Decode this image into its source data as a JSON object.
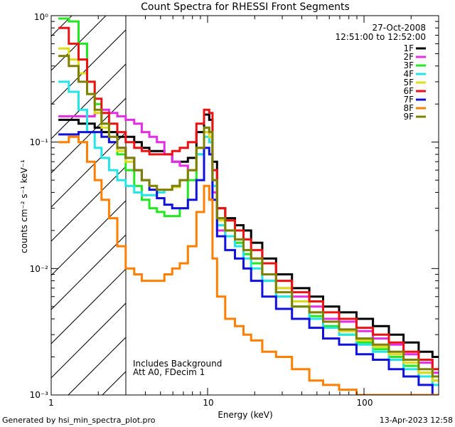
{
  "chart_data": {
    "type": "line",
    "title": "Count Spectra for RHESSI Front Segments",
    "xlabel": "Energy (keV)",
    "ylabel": "counts cm⁻² s⁻¹ keV⁻¹",
    "xscale": "log",
    "yscale": "log",
    "xlim": [
      1.0,
      300.0
    ],
    "ylim": [
      0.001,
      1.0
    ],
    "x_tick_labels": [
      "1",
      "10",
      "100"
    ],
    "y_tick_labels": [
      "10⁰",
      "10⁻¹",
      "10⁻²",
      "10⁻³"
    ],
    "grid": false,
    "legend_position": "top-right",
    "header_date": "27-Oct-2008",
    "header_time": "12:51:00 to 12:52:00",
    "annotations": [
      "Includes Background",
      "Att A0, FDecim 1"
    ],
    "footer_left": "Generated by hsi_min_spectra_plot.pro",
    "footer_right": "13-Apr-2023 12:58",
    "shaded_region_x": [
      1.0,
      3.0
    ],
    "x": [
      1.2,
      1.4,
      1.6,
      1.8,
      2.0,
      2.2,
      2.5,
      2.8,
      3.2,
      3.6,
      4.0,
      4.5,
      5.0,
      5.6,
      6.3,
      7.0,
      8.0,
      9.0,
      10.0,
      10.5,
      11.0,
      12.0,
      14.0,
      16.0,
      18.0,
      20.0,
      25.0,
      30.0,
      40.0,
      50.0,
      60.0,
      80.0,
      100.0,
      130.0,
      160.0,
      200.0,
      250.0,
      300.0
    ],
    "series": [
      {
        "name": "1F",
        "color": "#000000",
        "values": [
          0.15,
          0.15,
          0.14,
          0.14,
          0.13,
          0.12,
          0.12,
          0.11,
          0.11,
          0.1,
          0.09,
          0.085,
          0.085,
          0.08,
          0.07,
          0.07,
          0.075,
          0.12,
          0.165,
          0.15,
          0.07,
          0.03,
          0.025,
          0.022,
          0.02,
          0.016,
          0.012,
          0.009,
          0.007,
          0.006,
          0.005,
          0.0045,
          0.004,
          0.0035,
          0.003,
          0.0026,
          0.0022,
          0.002
        ]
      },
      {
        "name": "2F",
        "color": "#e52ce5",
        "values": [
          0.16,
          0.16,
          0.16,
          0.16,
          0.17,
          0.18,
          0.17,
          0.16,
          0.15,
          0.14,
          0.12,
          0.11,
          0.1,
          0.08,
          0.07,
          0.065,
          0.06,
          0.08,
          0.12,
          0.1,
          0.04,
          0.02,
          0.018,
          0.016,
          0.013,
          0.012,
          0.009,
          0.007,
          0.006,
          0.005,
          0.004,
          0.0038,
          0.0032,
          0.0028,
          0.0025,
          0.0021,
          0.0018,
          0.0015
        ]
      },
      {
        "name": "3F",
        "color": "#22e822",
        "values": [
          0.95,
          0.9,
          0.6,
          0.3,
          0.2,
          0.14,
          0.1,
          0.08,
          0.06,
          0.045,
          0.035,
          0.03,
          0.028,
          0.026,
          0.026,
          0.03,
          0.05,
          0.08,
          0.13,
          0.12,
          0.05,
          0.025,
          0.02,
          0.016,
          0.013,
          0.011,
          0.008,
          0.006,
          0.005,
          0.0042,
          0.0035,
          0.003,
          0.0026,
          0.0023,
          0.002,
          0.0017,
          0.0015,
          0.0013
        ]
      },
      {
        "name": "4F",
        "color": "#22e5e5",
        "values": [
          0.3,
          0.25,
          0.18,
          0.12,
          0.09,
          0.075,
          0.06,
          0.05,
          0.045,
          0.04,
          0.038,
          0.038,
          0.04,
          0.042,
          0.045,
          0.05,
          0.06,
          0.08,
          0.11,
          0.1,
          0.045,
          0.022,
          0.018,
          0.015,
          0.012,
          0.01,
          0.008,
          0.006,
          0.005,
          0.004,
          0.0034,
          0.003,
          0.0025,
          0.0022,
          0.0019,
          0.0016,
          0.0014,
          0.0012
        ]
      },
      {
        "name": "5F",
        "color": "#dcdc18",
        "values": [
          0.55,
          0.45,
          0.35,
          0.24,
          0.17,
          0.13,
          0.1,
          0.085,
          0.07,
          0.06,
          0.05,
          0.045,
          0.042,
          0.042,
          0.044,
          0.05,
          0.06,
          0.09,
          0.12,
          0.11,
          0.05,
          0.024,
          0.02,
          0.017,
          0.014,
          0.012,
          0.009,
          0.007,
          0.0055,
          0.0045,
          0.0038,
          0.0032,
          0.0027,
          0.0024,
          0.0021,
          0.0018,
          0.0015,
          0.0013
        ]
      },
      {
        "name": "6F",
        "color": "#ee1111",
        "values": [
          0.8,
          0.6,
          0.45,
          0.3,
          0.22,
          0.17,
          0.14,
          0.12,
          0.1,
          0.09,
          0.085,
          0.08,
          0.08,
          0.08,
          0.085,
          0.09,
          0.1,
          0.14,
          0.18,
          0.17,
          0.06,
          0.03,
          0.024,
          0.02,
          0.017,
          0.014,
          0.011,
          0.008,
          0.0065,
          0.0055,
          0.0045,
          0.004,
          0.0034,
          0.003,
          0.0026,
          0.0022,
          0.0019,
          0.0016
        ]
      },
      {
        "name": "7F",
        "color": "#1111dd",
        "values": [
          0.115,
          0.115,
          0.12,
          0.12,
          0.12,
          0.11,
          0.1,
          0.09,
          0.075,
          0.06,
          0.05,
          0.042,
          0.036,
          0.032,
          0.03,
          0.03,
          0.035,
          0.05,
          0.09,
          0.08,
          0.035,
          0.018,
          0.014,
          0.012,
          0.01,
          0.008,
          0.006,
          0.0048,
          0.004,
          0.0034,
          0.0028,
          0.0025,
          0.0021,
          0.0019,
          0.0016,
          0.0014,
          0.0012,
          0.001
        ]
      },
      {
        "name": "8F",
        "color": "#ff7f00",
        "values": [
          0.1,
          0.11,
          0.1,
          0.07,
          0.05,
          0.035,
          0.025,
          0.015,
          0.01,
          0.009,
          0.008,
          0.008,
          0.008,
          0.009,
          0.01,
          0.011,
          0.015,
          0.028,
          0.045,
          0.035,
          0.012,
          0.006,
          0.004,
          0.0035,
          0.003,
          0.0027,
          0.0022,
          0.002,
          0.0016,
          0.0013,
          0.0012,
          0.0011,
          0.001,
          0.001,
          0.001,
          0.001,
          0.001,
          0.001
        ]
      },
      {
        "name": "9F",
        "color": "#808000",
        "values": [
          0.48,
          0.4,
          0.3,
          0.24,
          0.18,
          0.14,
          0.11,
          0.09,
          0.075,
          0.06,
          0.05,
          0.045,
          0.042,
          0.042,
          0.045,
          0.05,
          0.06,
          0.09,
          0.13,
          0.12,
          0.05,
          0.025,
          0.02,
          0.017,
          0.014,
          0.012,
          0.009,
          0.0065,
          0.005,
          0.0045,
          0.0038,
          0.0033,
          0.0028,
          0.0025,
          0.0022,
          0.0019,
          0.0016,
          0.0014
        ]
      }
    ]
  }
}
